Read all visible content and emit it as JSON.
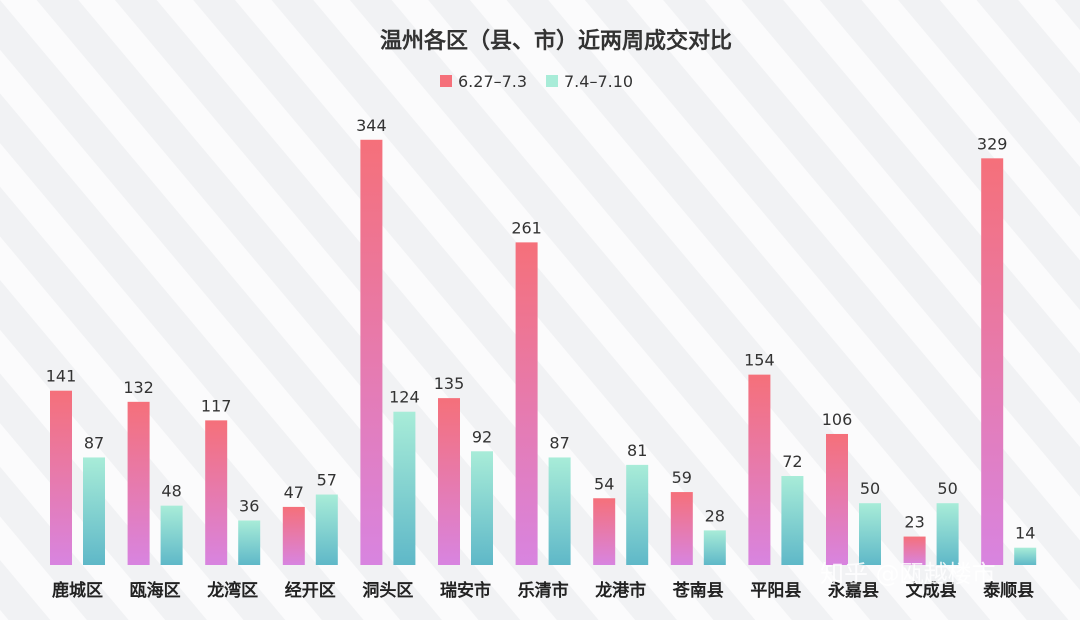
{
  "chart_data": {
    "type": "bar",
    "title": "温州各区（县、市）近两周成交对比",
    "categories": [
      "鹿城区",
      "瓯海区",
      "龙湾区",
      "经开区",
      "洞头区",
      "瑞安市",
      "乐清市",
      "龙港市",
      "苍南县",
      "平阳县",
      "永嘉县",
      "文成县",
      "泰顺县"
    ],
    "series": [
      {
        "name": "6.27–7.3",
        "values": [
          141,
          132,
          117,
          47,
          344,
          135,
          261,
          54,
          59,
          154,
          106,
          23,
          329
        ]
      },
      {
        "name": "7.4–7.10",
        "values": [
          87,
          48,
          36,
          57,
          124,
          92,
          87,
          81,
          28,
          72,
          50,
          50,
          14
        ]
      }
    ],
    "ylim": [
      0,
      360
    ],
    "legend": "top-center",
    "grid": false,
    "colors": {
      "series1_top": "#f5707a",
      "series1_bottom": "#d884e0",
      "series2_top": "#a8ecd8",
      "series2_bottom": "#5fb8c8"
    }
  },
  "watermark": "知乎 @瓯越楼市"
}
